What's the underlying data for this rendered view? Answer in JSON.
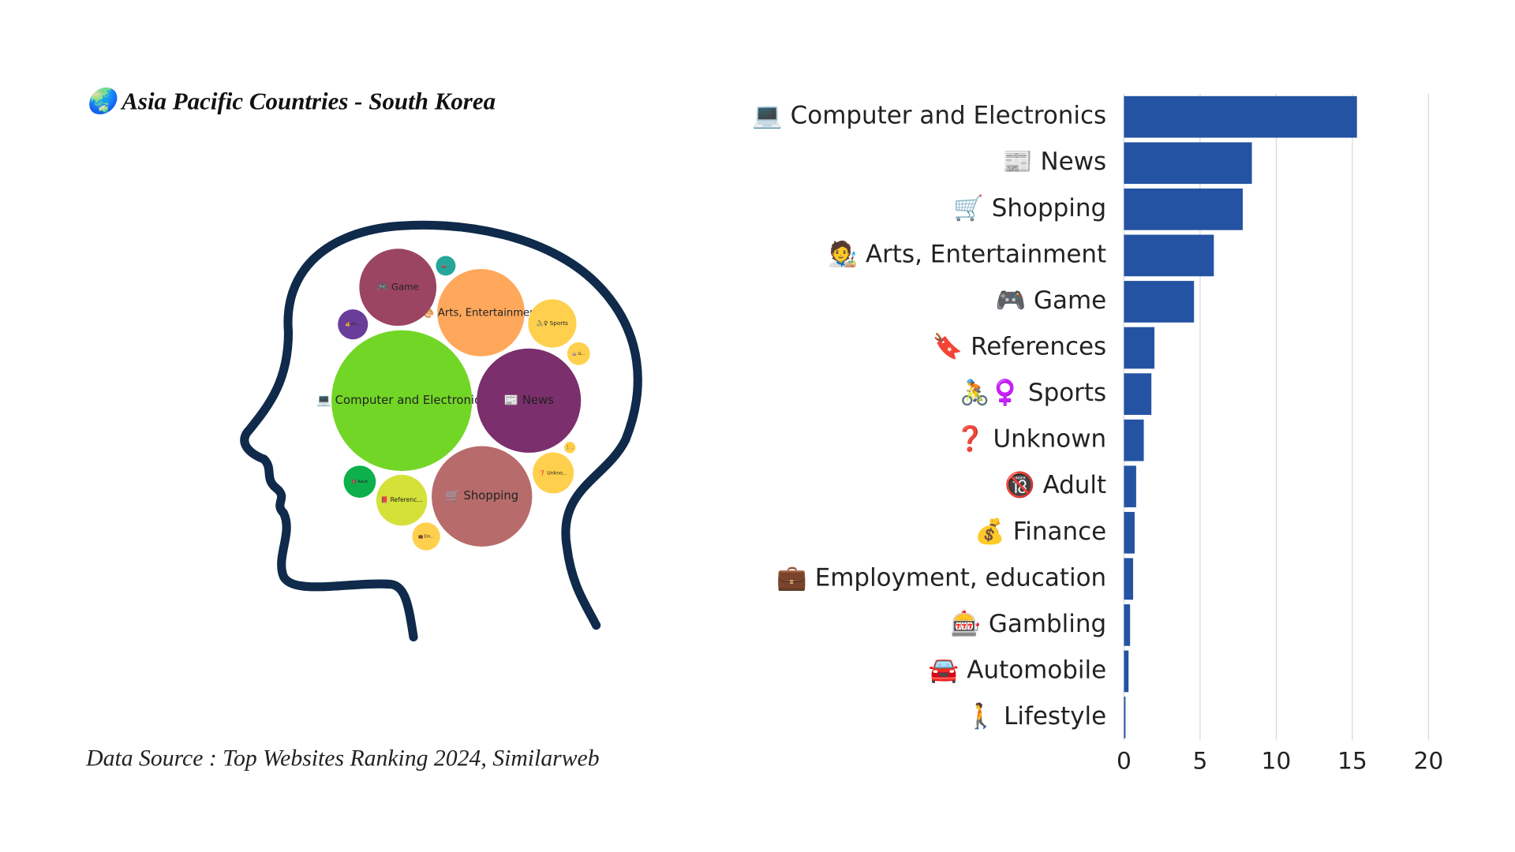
{
  "chart_data": [
    {
      "type": "bubble",
      "title": "🌏 Asia Pacific Countries - South Korea",
      "source": "Data Source : Top Websites Ranking 2024, Similarweb",
      "categories": [
        "💻 Computer and Electronics",
        "📰 News",
        "🛒 Shopping",
        "🎨 Arts, Entertainment",
        "🎮 Game",
        "📕 Referenc...",
        "🚴♀ Sports",
        "❓ Unkno...",
        "🔞 Adult",
        "💰 Fin...",
        "💼 Em...",
        "🎰 G...",
        "🚗...",
        "🚶..."
      ],
      "values": [
        15.3,
        8.4,
        7.8,
        5.9,
        4.6,
        2,
        1.8,
        1.3,
        0.8,
        0.7,
        0.6,
        0.4,
        0.3,
        0.1
      ],
      "colors": [
        "#72d626",
        "#7b2f6c",
        "#b86b6b",
        "#ffa85c",
        "#9b4563",
        "#d4e138",
        "#ffd04d",
        "#ffd04d",
        "#0db04b",
        "#6a3d9a",
        "#ffd04d",
        "#ffd04d",
        "#26a69a",
        "#ffd04d"
      ]
    },
    {
      "type": "bar",
      "categories": [
        "💻 Computer and Electronics",
        "📰 News",
        "🛒 Shopping",
        "🧑‍🎨 Arts, Entertainment",
        "🎮 Game",
        "🔖 References",
        "🚴♀️ Sports",
        "❓ Unknown",
        "🔞 Adult",
        "💰 Finance",
        "💼 Employment, education",
        "🎰 Gambling",
        "🚘 Automobile",
        "🚶 Lifestyle"
      ],
      "values": [
        15.3,
        8.4,
        7.8,
        5.9,
        4.6,
        2,
        1.8,
        1.3,
        0.8,
        0.7,
        0.6,
        0.4,
        0.3,
        0.1
      ],
      "color": "#2553a3",
      "xlim": [
        0,
        21.5
      ],
      "xticks": [
        0,
        5,
        10,
        15,
        20
      ],
      "grid": true
    }
  ]
}
